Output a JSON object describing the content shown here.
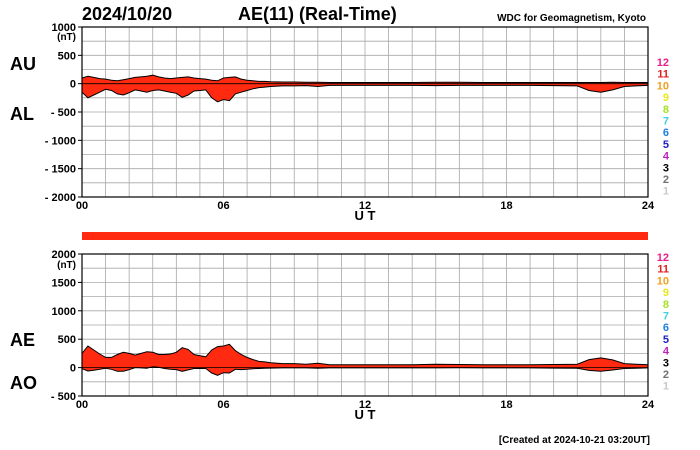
{
  "header": {
    "date": "2024/10/20",
    "title": "AE(11) (Real-Time)",
    "source": "WDC for Geomagnetism, Kyoto"
  },
  "footer": {
    "created": "[Created at 2024-10-21 03:20UT]"
  },
  "scale_levels": [
    {
      "label": "12",
      "color": "#e8208a"
    },
    {
      "label": "11",
      "color": "#e02020"
    },
    {
      "label": "10",
      "color": "#f0a020"
    },
    {
      "label": "9",
      "color": "#e8e820"
    },
    {
      "label": "8",
      "color": "#a8e020"
    },
    {
      "label": "7",
      "color": "#40d0e0"
    },
    {
      "label": "6",
      "color": "#2080e0"
    },
    {
      "label": "5",
      "color": "#2020c0"
    },
    {
      "label": "4",
      "color": "#c020c0"
    },
    {
      "label": "3",
      "color": "#000000"
    },
    {
      "label": "2",
      "color": "#707070"
    },
    {
      "label": "1",
      "color": "#c8c8c8"
    }
  ],
  "chart_data": [
    {
      "type": "area",
      "panel": "AU/AL",
      "side_labels": [
        "AU",
        "AL"
      ],
      "ylabel": "(nT)",
      "xlabel": "U T",
      "ylim": [
        -2000,
        1000
      ],
      "yticks": [
        1000,
        500,
        0,
        -500,
        -1000,
        -1500,
        -2000
      ],
      "ytick_labels": [
        "1000",
        "500",
        "0",
        "- 500",
        "- 1000",
        "- 1500",
        "- 2000"
      ],
      "xlim": [
        0,
        24
      ],
      "xticks": [
        0,
        6,
        12,
        18,
        24
      ],
      "xtick_labels": [
        "00",
        "06",
        "12",
        "18",
        "24"
      ],
      "grid": true,
      "fill_color": "#ff2a10",
      "x_hours": [
        0,
        0.25,
        0.5,
        0.75,
        1,
        1.25,
        1.5,
        1.75,
        2,
        2.25,
        2.5,
        2.75,
        3,
        3.25,
        3.5,
        3.75,
        4,
        4.25,
        4.5,
        4.75,
        5,
        5.25,
        5.5,
        5.75,
        6,
        6.25,
        6.5,
        6.75,
        7,
        7.25,
        7.5,
        7.75,
        8,
        8.5,
        9,
        9.5,
        10,
        10.5,
        11,
        11.5,
        12,
        13,
        14,
        15,
        16,
        17,
        18,
        19,
        20,
        21,
        21.5,
        22,
        22.5,
        23,
        23.5,
        24
      ],
      "series": [
        {
          "name": "AU",
          "values": [
            100,
            130,
            110,
            90,
            80,
            60,
            50,
            70,
            90,
            110,
            120,
            130,
            150,
            120,
            100,
            90,
            100,
            110,
            120,
            100,
            90,
            80,
            60,
            50,
            100,
            110,
            120,
            80,
            60,
            50,
            40,
            40,
            35,
            30,
            30,
            25,
            25,
            20,
            20,
            20,
            20,
            20,
            20,
            25,
            25,
            20,
            20,
            20,
            20,
            20,
            20,
            20,
            25,
            20,
            20,
            20
          ]
        },
        {
          "name": "AL",
          "values": [
            -150,
            -250,
            -200,
            -150,
            -100,
            -120,
            -180,
            -200,
            -160,
            -110,
            -130,
            -150,
            -120,
            -110,
            -130,
            -150,
            -170,
            -240,
            -200,
            -130,
            -120,
            -110,
            -250,
            -320,
            -280,
            -300,
            -180,
            -150,
            -120,
            -90,
            -70,
            -60,
            -50,
            -40,
            -40,
            -35,
            -50,
            -30,
            -30,
            -30,
            -30,
            -30,
            -30,
            -35,
            -30,
            -30,
            -30,
            -30,
            -35,
            -40,
            -120,
            -150,
            -110,
            -50,
            -40,
            -30
          ]
        }
      ]
    },
    {
      "type": "area",
      "panel": "AE/AO",
      "side_labels": [
        "AE",
        "AO"
      ],
      "ylabel": "(nT)",
      "xlabel": "U T",
      "ylim": [
        -500,
        2000
      ],
      "yticks": [
        2000,
        1500,
        1000,
        500,
        0,
        -500
      ],
      "ytick_labels": [
        "2000",
        "1500",
        "1000",
        "500",
        "0",
        "- 500"
      ],
      "xlim": [
        0,
        24
      ],
      "xticks": [
        0,
        6,
        12,
        18,
        24
      ],
      "xtick_labels": [
        "00",
        "06",
        "12",
        "18",
        "24"
      ],
      "grid": true,
      "fill_color": "#ff2a10",
      "x_hours": [
        0,
        0.25,
        0.5,
        0.75,
        1,
        1.25,
        1.5,
        1.75,
        2,
        2.25,
        2.5,
        2.75,
        3,
        3.25,
        3.5,
        3.75,
        4,
        4.25,
        4.5,
        4.75,
        5,
        5.25,
        5.5,
        5.75,
        6,
        6.25,
        6.5,
        6.75,
        7,
        7.25,
        7.5,
        7.75,
        8,
        8.5,
        9,
        9.5,
        10,
        10.5,
        11,
        11.5,
        12,
        13,
        14,
        15,
        16,
        17,
        18,
        19,
        20,
        21,
        21.5,
        22,
        22.5,
        23,
        23.5,
        24
      ],
      "series": [
        {
          "name": "AE",
          "values": [
            250,
            380,
            310,
            240,
            180,
            180,
            230,
            270,
            250,
            220,
            250,
            280,
            270,
            230,
            230,
            240,
            270,
            350,
            320,
            230,
            210,
            190,
            310,
            370,
            380,
            410,
            300,
            230,
            180,
            140,
            110,
            100,
            85,
            70,
            70,
            60,
            75,
            50,
            50,
            50,
            50,
            50,
            50,
            60,
            55,
            50,
            50,
            50,
            55,
            60,
            140,
            170,
            135,
            70,
            60,
            50
          ]
        },
        {
          "name": "AO",
          "values": [
            -20,
            -60,
            -45,
            -30,
            -10,
            -30,
            -65,
            -65,
            -35,
            0,
            -5,
            -10,
            15,
            5,
            -15,
            -30,
            -35,
            -65,
            -40,
            -15,
            -15,
            -15,
            -95,
            -135,
            -90,
            -95,
            -30,
            -35,
            -30,
            -20,
            -15,
            -10,
            -8,
            -5,
            -5,
            -5,
            -12,
            -5,
            -5,
            -5,
            -5,
            -5,
            -5,
            -5,
            -2,
            -5,
            -5,
            -5,
            -8,
            -10,
            -50,
            -65,
            -42,
            -15,
            -10,
            -5
          ]
        }
      ],
      "overlay_bar": {
        "hours": [
          0,
          24
        ],
        "color": "#ff2a10"
      }
    }
  ]
}
